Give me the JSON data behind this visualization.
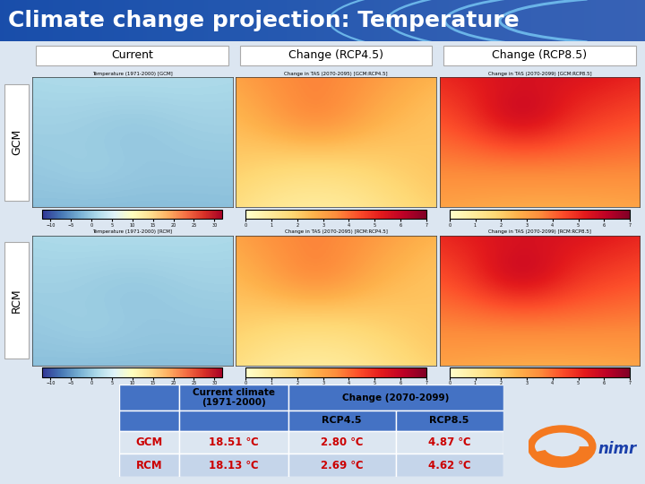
{
  "title": "Climate change projection: Temperature",
  "title_bg_color_left": "#1a4aaa",
  "title_bg_color_right": "#0a2288",
  "title_text_color": "#ffffff",
  "title_fontsize": 18,
  "bg_color": "#dce6f1",
  "col_headers": [
    "Current",
    "Change (RCP4.5)",
    "Change (RCP8.5)"
  ],
  "row_labels": [
    "GCM",
    "RCM"
  ],
  "table_header_color": "#4472c4",
  "table_row_color1": "#dce6f1",
  "table_row_color2": "#c5d5ea",
  "table_value_color": "#cc0000",
  "table_gcm": [
    "GCM",
    "18.51 ℃",
    "2.80 ℃",
    "4.87 ℃"
  ],
  "table_rcm": [
    "RCM",
    "18.13 ℃",
    "2.69 ℃",
    "4.62 ℃"
  ],
  "gcm_map_titles": [
    "Temperature (1971-2000) [GCM]",
    "Change in TAS (2070-2095) [GCM:RCP4.5]",
    "Change in TAS (2070-2099) [GCM:RCP8.5]"
  ],
  "rcm_map_titles": [
    "Temperature (1971-2000) [RCM]",
    "Change in TAS (2070-2095) [RCM:RCP4.5]",
    "Change in TAS (2070-2099) [RCM:RCP8.5]"
  ],
  "arc_color": "#6ab4e8",
  "nimr_orange": "#f47920",
  "nimr_blue": "#1a3faa"
}
